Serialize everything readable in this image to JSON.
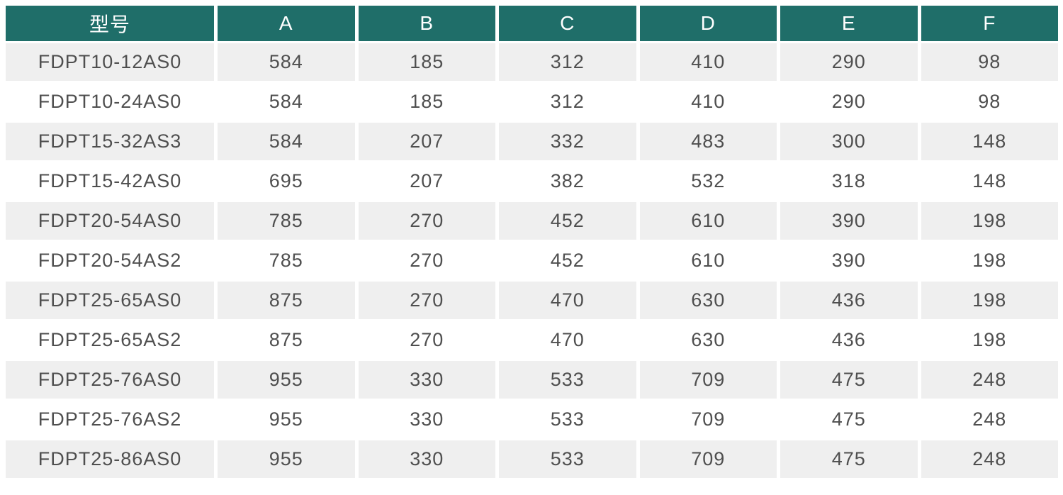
{
  "table": {
    "columns": [
      "型号",
      "A",
      "B",
      "C",
      "D",
      "E",
      "F"
    ],
    "rows": [
      {
        "model": "FDPT10-12AS0",
        "values": [
          "584",
          "185",
          "312",
          "410",
          "290",
          "98"
        ]
      },
      {
        "model": "FDPT10-24AS0",
        "values": [
          "584",
          "185",
          "312",
          "410",
          "290",
          "98"
        ]
      },
      {
        "model": "FDPT15-32AS3",
        "values": [
          "584",
          "207",
          "332",
          "483",
          "300",
          "148"
        ]
      },
      {
        "model": "FDPT15-42AS0",
        "values": [
          "695",
          "207",
          "382",
          "532",
          "318",
          "148"
        ]
      },
      {
        "model": "FDPT20-54AS0",
        "values": [
          "785",
          "270",
          "452",
          "610",
          "390",
          "198"
        ]
      },
      {
        "model": "FDPT20-54AS2",
        "values": [
          "785",
          "270",
          "452",
          "610",
          "390",
          "198"
        ]
      },
      {
        "model": "FDPT25-65AS0",
        "values": [
          "875",
          "270",
          "470",
          "630",
          "436",
          "198"
        ]
      },
      {
        "model": "FDPT25-65AS2",
        "values": [
          "875",
          "270",
          "470",
          "630",
          "436",
          "198"
        ]
      },
      {
        "model": "FDPT25-76AS0",
        "values": [
          "955",
          "330",
          "533",
          "709",
          "475",
          "248"
        ]
      },
      {
        "model": "FDPT25-76AS2",
        "values": [
          "955",
          "330",
          "533",
          "709",
          "475",
          "248"
        ]
      },
      {
        "model": "FDPT25-86AS0",
        "values": [
          "955",
          "330",
          "533",
          "709",
          "475",
          "248"
        ]
      }
    ]
  },
  "colors": {
    "header_bg": "#1F6E69",
    "header_text": "#FFFFFF",
    "row_alt_bg": "#EFEFEF",
    "row_bg": "#FFFFFF",
    "cell_text": "#4F4F4F",
    "separator": "#FFFFFF"
  }
}
